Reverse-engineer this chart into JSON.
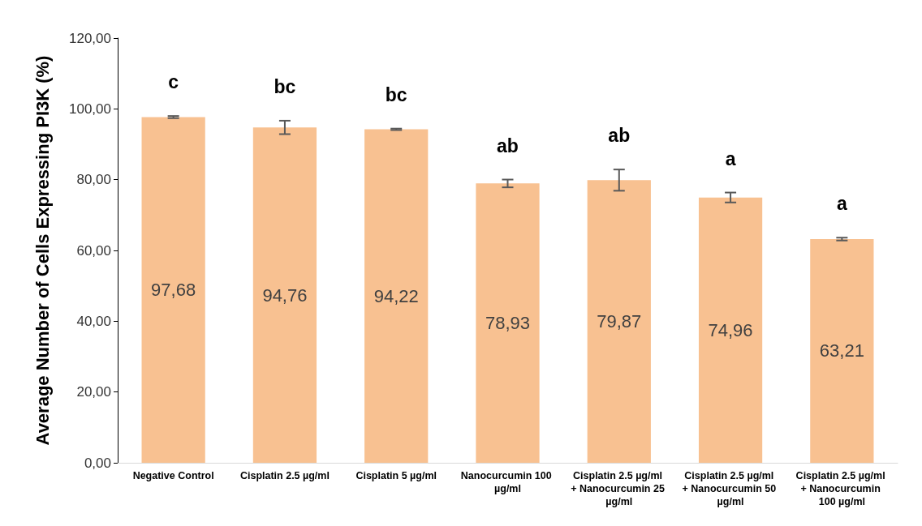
{
  "chart_data": {
    "type": "bar",
    "ylabel": "Average Number of Cells Expressing PI3K (%)",
    "categories": [
      "Negative Control",
      "Cisplatin 2.5 µg/ml",
      "Cisplatin 5 µg/ml",
      "Nanocurcumin 100 µg/ml",
      "Cisplatin 2.5 µg/ml + Nanocurcumin 25 µg/ml",
      "Cisplatin 2.5 µg/ml + Nanocurcumin 50 µg/ml",
      "Cisplatin 2.5 µg/ml + Nanocurcumin 100 µg/ml"
    ],
    "values": [
      97.68,
      94.76,
      94.22,
      78.93,
      79.87,
      74.96,
      63.21
    ],
    "value_labels": [
      "97,68",
      "94,76",
      "94,22",
      "78,93",
      "79,87",
      "74,96",
      "63,21"
    ],
    "errors": [
      0.3,
      1.9,
      0.2,
      1.1,
      3.0,
      1.4,
      0.4
    ],
    "color": "#f8c191",
    "ylim": [
      0,
      120
    ],
    "yticks": [
      {
        "value": 0,
        "label": "0,00"
      },
      {
        "value": 20,
        "label": "20,00"
      },
      {
        "value": 40,
        "label": "40,00"
      },
      {
        "value": 60,
        "label": "60,00"
      },
      {
        "value": 80,
        "label": "80,00"
      },
      {
        "value": 100,
        "label": "100,00"
      },
      {
        "value": 120,
        "label": "120,00"
      }
    ],
    "grid": false,
    "annotations": [
      "c",
      "bc",
      "bc",
      "ab",
      "ab",
      "a",
      "a"
    ]
  }
}
